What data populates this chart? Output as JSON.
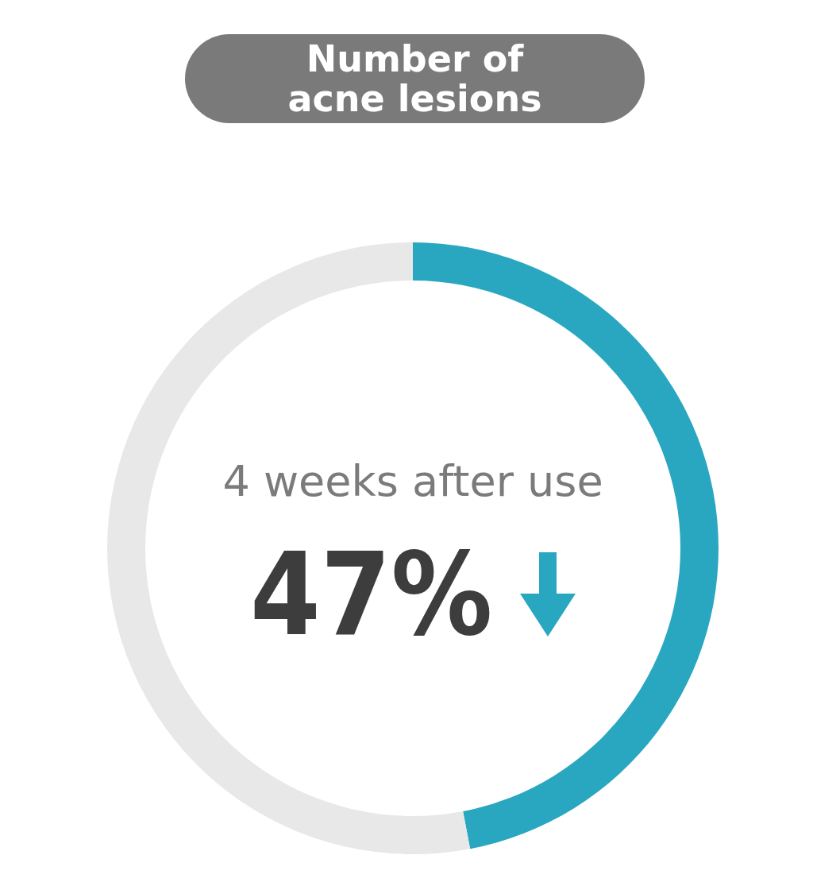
{
  "chart_data": {
    "type": "donut",
    "title": "Number of acne lesions",
    "categories": [
      null,
      null
    ],
    "values": [
      47,
      53
    ],
    "colors": [
      "#29a7c1",
      "#e8e8e8"
    ],
    "annotations": [
      "4 weeks after use",
      "47%"
    ]
  }
}
